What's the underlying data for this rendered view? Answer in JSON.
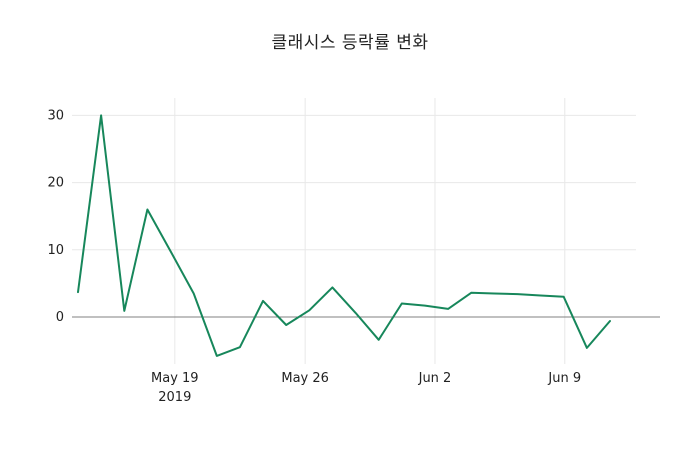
{
  "title": "클래시스 등락률 변화",
  "chart": {
    "line_color": "#17875b",
    "grid_color": "#e8e8e8",
    "zero_line_color": "#808080",
    "text_color": "#222222",
    "tick_font_size": 13
  },
  "chart_data": {
    "type": "line",
    "title": "클래시스 등락률 변화",
    "series": [
      {
        "name": "등락률",
        "values": [
          3.7,
          30,
          0.9,
          16,
          9.8,
          3.5,
          -5.8,
          -4.5,
          2.4,
          -1.2,
          1.0,
          4.4,
          0.6,
          -3.4,
          2.0,
          1.7,
          1.2,
          3.6,
          3.5,
          3.4,
          3.2,
          3.0,
          -4.6,
          -0.6
        ]
      }
    ],
    "ylim": [
      -7,
      32
    ],
    "yticks": [
      0,
      10,
      20,
      30
    ],
    "xticks": [
      {
        "label": "May 19",
        "sublabel": "2019",
        "pos": 0.182
      },
      {
        "label": "May 26",
        "sublabel": "",
        "pos": 0.427
      },
      {
        "label": "Jun 2",
        "sublabel": "",
        "pos": 0.671
      },
      {
        "label": "Jun 9",
        "sublabel": "",
        "pos": 0.915
      }
    ],
    "grid": true,
    "legend_position": "none"
  }
}
